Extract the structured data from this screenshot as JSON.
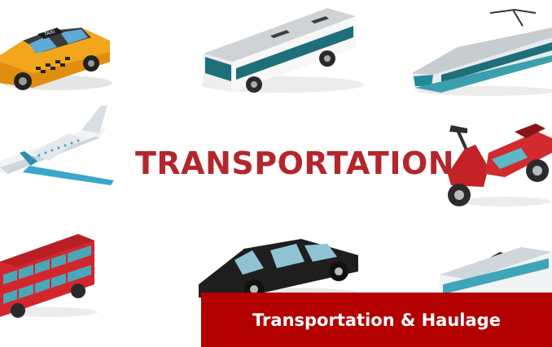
{
  "headline": "TRANSPORTATION",
  "caption": "Transportation & Haulage",
  "taxi_sign": "TAXI",
  "colors": {
    "headline": "#b3262c",
    "caption_bar": "#b30000",
    "caption_text": "#ffffff"
  },
  "vehicles": [
    "taxi",
    "bus",
    "high-speed-train",
    "airplane",
    "scooter",
    "double-decker-bus",
    "london-cab",
    "tram"
  ]
}
